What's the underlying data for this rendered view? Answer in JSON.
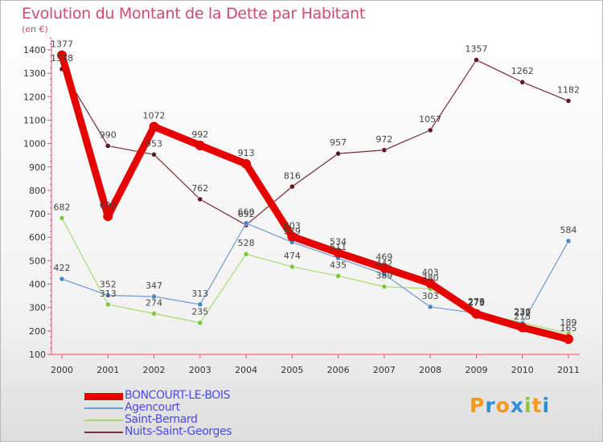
{
  "chart_data": {
    "type": "line",
    "title": "Evolution du Montant de la Dette par Habitant",
    "unit_label": "(en €)",
    "categories": [
      "2000",
      "2001",
      "2002",
      "2003",
      "2004",
      "2005",
      "2006",
      "2007",
      "2008",
      "2009",
      "2010",
      "2011"
    ],
    "yticks": [
      100,
      200,
      300,
      400,
      500,
      600,
      700,
      800,
      900,
      1000,
      1100,
      1200,
      1300,
      1400
    ],
    "ylim": [
      100,
      1460
    ],
    "grid": false,
    "legend_position": "bottom-left",
    "series": [
      {
        "name": "BONCOURT-LE-BOIS",
        "color": "#e60000",
        "width": 9,
        "dot": 6,
        "labels_above": true,
        "values": [
          1377,
          690,
          1072,
          992,
          913,
          603,
          534,
          469,
          403,
          273,
          215,
          165
        ]
      },
      {
        "name": "Agencourt",
        "color": "#6d9bd3",
        "width": 1.2,
        "dot": 3,
        "labels_above": true,
        "values": [
          422,
          352,
          347,
          313,
          660,
          579,
          511,
          442,
          303,
          276,
          232,
          584
        ]
      },
      {
        "name": "Saint-Bernard",
        "color": "#a6dc6e",
        "width": 1.2,
        "dot": 3,
        "labels_above": true,
        "values": [
          682,
          313,
          274,
          235,
          528,
          474,
          435,
          389,
          380,
          279,
          236,
          189
        ]
      },
      {
        "name": "Nuits-Saint-Georges",
        "color": "#7a2a36",
        "width": 1.2,
        "dot": 3,
        "labels_above": true,
        "values": [
          1318,
          990,
          953,
          762,
          652,
          816,
          957,
          972,
          1057,
          1357,
          1262,
          1182
        ]
      }
    ]
  },
  "logo": {
    "letters": [
      "P",
      "r",
      "o",
      "x",
      "i",
      "t",
      "i"
    ],
    "colors": [
      "#f39a1e",
      "#2e8fd6",
      "#f39a1e",
      "#2e8fd6",
      "#8cc63f",
      "#f39a1e",
      "#2e8fd6"
    ]
  }
}
